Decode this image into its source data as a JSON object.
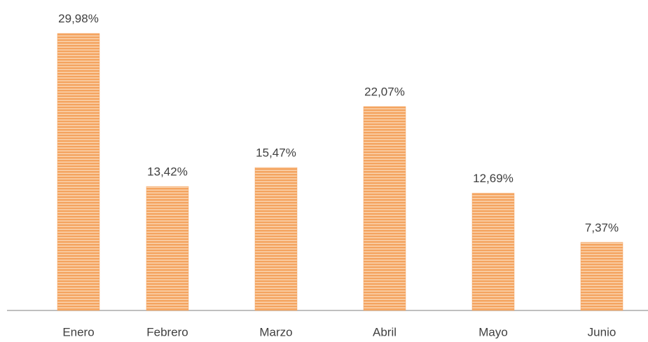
{
  "chart_data": {
    "type": "bar",
    "categories": [
      "Enero",
      "Febrero",
      "Marzo",
      "Abril",
      "Mayo",
      "Junio"
    ],
    "values": [
      29.98,
      13.42,
      15.47,
      22.07,
      12.69,
      7.37
    ],
    "value_labels": [
      "29,98%",
      "13,42%",
      "15,47%",
      "22,07%",
      "12,69%",
      "7,37%"
    ],
    "color": "#f4a460",
    "ylim": [
      0,
      30
    ]
  }
}
